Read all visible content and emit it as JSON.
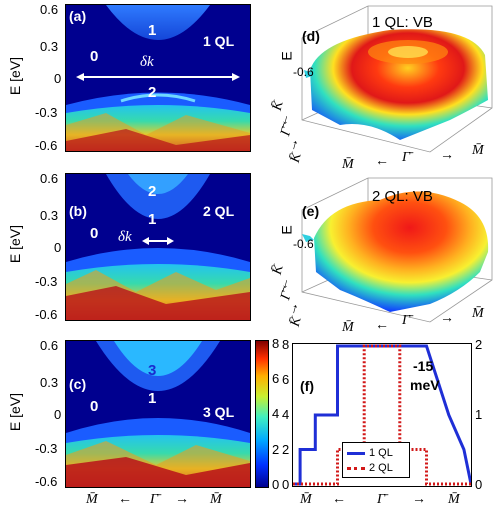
{
  "left_panels": [
    {
      "label": "(a)",
      "ql": "1 QL",
      "regions": [
        "1",
        "0",
        "2"
      ],
      "dk": "δk"
    },
    {
      "label": "(b)",
      "ql": "2 QL",
      "regions": [
        "2",
        "1",
        "0"
      ],
      "dk": "δk"
    },
    {
      "label": "(c)",
      "ql": "3 QL",
      "regions": [
        "3",
        "1",
        "0"
      ]
    }
  ],
  "ylabel": "E [eV]",
  "yticks": [
    "0.6",
    "0.3",
    "0",
    "-0.3",
    "-0.6"
  ],
  "xticks_bottom": [
    "M̄",
    "←",
    "Γ̄",
    "→",
    "M̄"
  ],
  "colorbar_ticks": [
    "8",
    "6",
    "4",
    "2",
    "0"
  ],
  "surface_panels": [
    {
      "label": "(d)",
      "title": "1 QL: VB",
      "zlabel": "E",
      "ztick": "-0.6",
      "kaxis": [
        "K̄",
        "←",
        "Γ̄",
        "→",
        "K̄"
      ],
      "maxis": [
        "M̄",
        "Γ̄",
        "M̄"
      ]
    },
    {
      "label": "(e)",
      "title": "2 QL: VB",
      "zlabel": "E",
      "ztick": "-0.6",
      "kaxis": [
        "K̄",
        "←",
        "Γ̄",
        "→",
        "K̄"
      ],
      "maxis": [
        "M̄",
        "Γ̄",
        "M̄"
      ]
    }
  ],
  "panel_f": {
    "label": "(f)",
    "annotation_value": "-15",
    "annotation_unit": "meV",
    "left_ticks": [
      "8",
      "6",
      "4",
      "2",
      "0"
    ],
    "right_ticks": [
      "2",
      "1",
      "0"
    ],
    "xticks": [
      "M̄",
      "←",
      "Γ̄",
      "→",
      "M̄"
    ],
    "legend": [
      "1 QL",
      "2 QL"
    ]
  },
  "colors": {
    "dark_blue": "#00008f",
    "line_1ql": "#1f2fd6",
    "line_2ql": "#d21818"
  },
  "chart_data": {
    "type": "line",
    "x": [
      -1,
      -0.92,
      -0.92,
      -0.75,
      -0.75,
      -0.5,
      -0.5,
      -0.2,
      -0.2,
      0,
      0.2,
      0.2,
      0.5,
      0.5,
      0.75,
      0.75,
      0.92,
      0.92,
      1
    ],
    "series": [
      {
        "name": "1 QL",
        "axis": "left",
        "values": [
          0,
          0,
          2,
          2,
          4,
          4,
          8,
          8,
          8,
          8,
          8,
          8,
          8,
          8,
          4,
          4,
          2,
          2,
          0
        ]
      },
      {
        "name": "2 QL",
        "axis": "left",
        "values": [
          0,
          0,
          0,
          0,
          0,
          0,
          2,
          2,
          8,
          8,
          8,
          2,
          2,
          0,
          0,
          0,
          0,
          0,
          0
        ]
      }
    ],
    "ylim_left": [
      0,
      8
    ],
    "ylim_right": [
      0,
      2
    ],
    "xlim": [
      -1,
      1
    ],
    "annotation": "-15 meV"
  }
}
